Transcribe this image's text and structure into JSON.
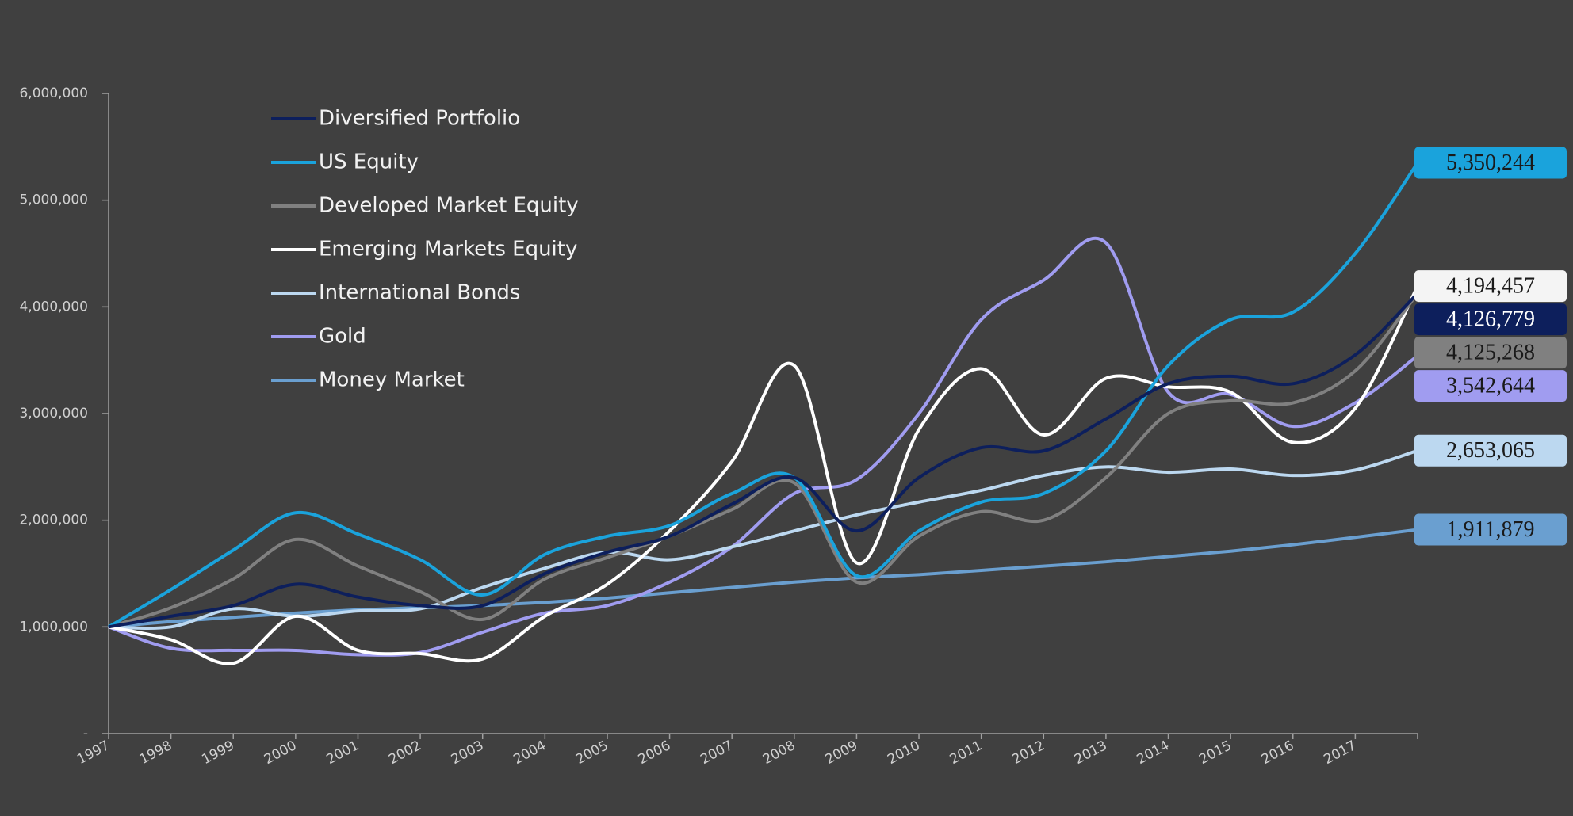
{
  "chart_data": {
    "type": "line",
    "categories": [
      "1997",
      "1998",
      "1999",
      "2000",
      "2001",
      "2002",
      "2003",
      "2004",
      "2005",
      "2006",
      "2007",
      "2008",
      "2009",
      "2010",
      "2011",
      "2012",
      "2013",
      "2014",
      "2015",
      "2016",
      "2017",
      null
    ],
    "ylim": [
      0,
      6000000
    ],
    "yticks": [
      {
        "value": 0,
        "label": "-"
      },
      {
        "value": 1000000,
        "label": "1,000,000"
      },
      {
        "value": 2000000,
        "label": "2,000,000"
      },
      {
        "value": 3000000,
        "label": "3,000,000"
      },
      {
        "value": 4000000,
        "label": "4,000,000"
      },
      {
        "value": 5000000,
        "label": "5,000,000"
      },
      {
        "value": 6000000,
        "label": "6,000,000"
      }
    ],
    "legend": "upper left",
    "series": [
      {
        "name": "Diversified Portfolio",
        "color": "#0d1f5c",
        "values": [
          1000000,
          1100000,
          1200000,
          1400000,
          1280000,
          1200000,
          1200000,
          1500000,
          1700000,
          1850000,
          2150000,
          2400000,
          1900000,
          2400000,
          2680000,
          2650000,
          2950000,
          3280000,
          3350000,
          3280000,
          3550000,
          4126779
        ],
        "value_labels": [
          null,
          null,
          null,
          null,
          null,
          null,
          null,
          null,
          null,
          null,
          null,
          null,
          null,
          null,
          null,
          null,
          null,
          null,
          null,
          null,
          null,
          "4,126,779"
        ]
      },
      {
        "name": "US Equity",
        "color": "#1aa3dc",
        "values": [
          1000000,
          1350000,
          1720000,
          2070000,
          1870000,
          1630000,
          1300000,
          1680000,
          1850000,
          1950000,
          2250000,
          2400000,
          1480000,
          1900000,
          2170000,
          2250000,
          2650000,
          3450000,
          3880000,
          3950000,
          4500000,
          5350244
        ],
        "value_labels": [
          null,
          null,
          null,
          null,
          null,
          null,
          null,
          null,
          null,
          null,
          null,
          null,
          null,
          null,
          null,
          null,
          null,
          null,
          null,
          null,
          null,
          "5,350,244"
        ]
      },
      {
        "name": "Developed Market Equity",
        "color": "#808080",
        "values": [
          1000000,
          1180000,
          1450000,
          1820000,
          1570000,
          1330000,
          1070000,
          1450000,
          1650000,
          1850000,
          2100000,
          2350000,
          1420000,
          1850000,
          2080000,
          2000000,
          2400000,
          3000000,
          3120000,
          3100000,
          3400000,
          4125268
        ],
        "value_labels": [
          null,
          null,
          null,
          null,
          null,
          null,
          null,
          null,
          null,
          null,
          null,
          null,
          null,
          null,
          null,
          null,
          null,
          null,
          null,
          null,
          null,
          "4,125,268"
        ]
      },
      {
        "name": "Emerging Markets Equity",
        "color": "#ffffff",
        "values": [
          1000000,
          880000,
          660000,
          1100000,
          780000,
          750000,
          700000,
          1100000,
          1400000,
          1900000,
          2550000,
          3450000,
          1600000,
          2850000,
          3420000,
          2800000,
          3330000,
          3250000,
          3200000,
          2730000,
          3050000,
          4194457
        ],
        "value_labels": [
          null,
          null,
          null,
          null,
          null,
          null,
          null,
          null,
          null,
          null,
          null,
          null,
          null,
          null,
          null,
          null,
          null,
          null,
          null,
          null,
          null,
          "4,194,457"
        ]
      },
      {
        "name": "International Bonds",
        "color": "#bcd8f0",
        "values": [
          1000000,
          1000000,
          1170000,
          1100000,
          1150000,
          1170000,
          1370000,
          1550000,
          1700000,
          1630000,
          1750000,
          1900000,
          2050000,
          2170000,
          2280000,
          2420000,
          2500000,
          2450000,
          2480000,
          2420000,
          2470000,
          2653065
        ],
        "value_labels": [
          null,
          null,
          null,
          null,
          null,
          null,
          null,
          null,
          null,
          null,
          null,
          null,
          null,
          null,
          null,
          null,
          null,
          null,
          null,
          null,
          null,
          "2,653,065"
        ]
      },
      {
        "name": "Gold",
        "color": "#a09cf0",
        "values": [
          1000000,
          800000,
          780000,
          780000,
          740000,
          760000,
          950000,
          1130000,
          1200000,
          1420000,
          1750000,
          2250000,
          2380000,
          3000000,
          3880000,
          4250000,
          4600000,
          3200000,
          3180000,
          2880000,
          3100000,
          3542644
        ],
        "value_labels": [
          null,
          null,
          null,
          null,
          null,
          null,
          null,
          null,
          null,
          null,
          null,
          null,
          null,
          null,
          null,
          null,
          null,
          null,
          null,
          null,
          null,
          "3,542,644"
        ]
      },
      {
        "name": "Money Market",
        "color": "#6a9fd0",
        "values": [
          1000000,
          1050000,
          1090000,
          1130000,
          1160000,
          1180000,
          1200000,
          1230000,
          1270000,
          1320000,
          1370000,
          1420000,
          1460000,
          1490000,
          1530000,
          1570000,
          1610000,
          1660000,
          1710000,
          1770000,
          1840000,
          1911879
        ],
        "value_labels": [
          null,
          null,
          null,
          null,
          null,
          null,
          null,
          null,
          null,
          null,
          null,
          null,
          null,
          null,
          null,
          null,
          null,
          null,
          null,
          null,
          null,
          "1,911,879"
        ]
      }
    ]
  }
}
